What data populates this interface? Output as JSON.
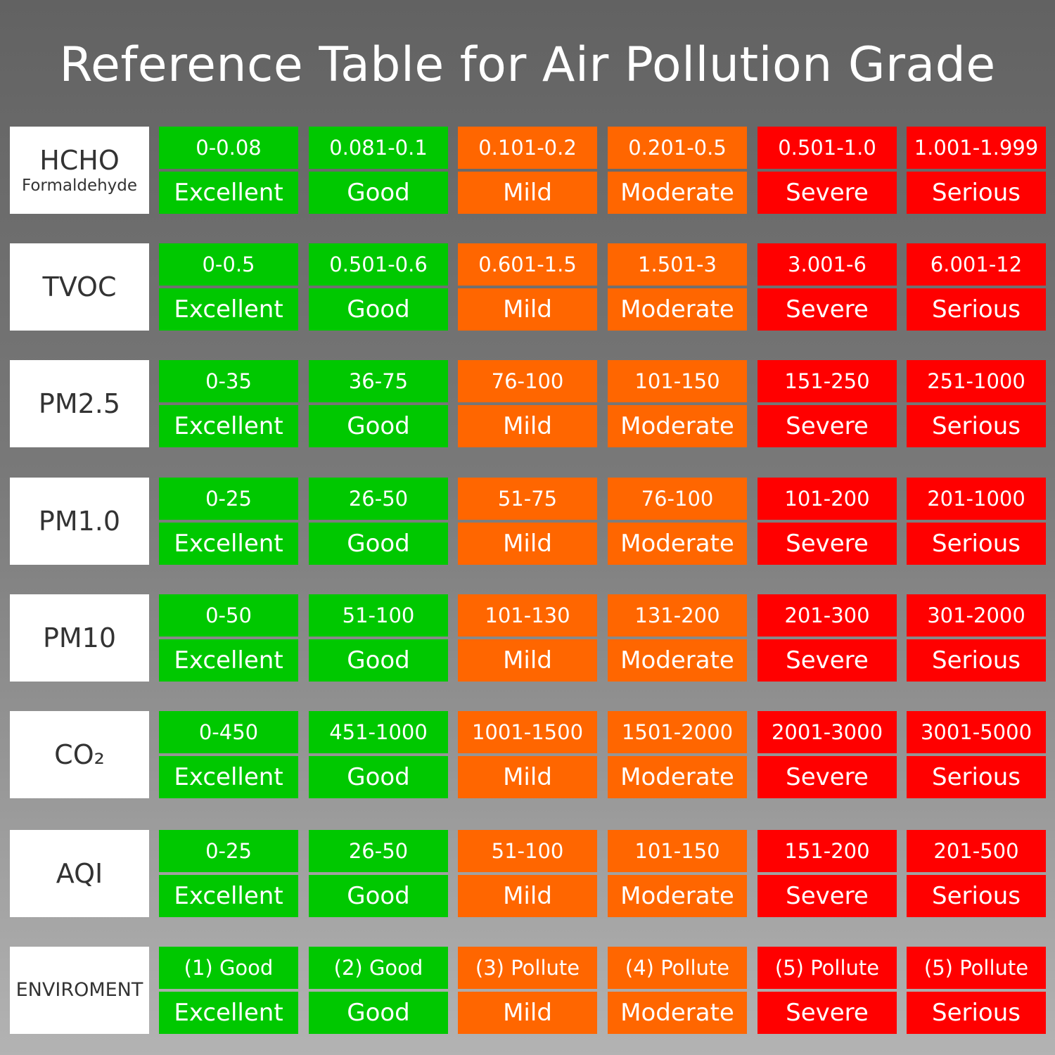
{
  "title": "Reference Table for Air Pollution Grade",
  "colors": {
    "green": "#00c800",
    "orange": "#ff6600",
    "red": "#ff0000"
  },
  "grades": [
    "Excellent",
    "Good",
    "Mild",
    "Moderate",
    "Severe",
    "Serious"
  ],
  "rows": [
    {
      "label": "HCHO",
      "sublabel": "Formaldehyde",
      "ranges": [
        "0-0.08",
        "0.081-0.1",
        "0.101-0.2",
        "0.201-0.5",
        "0.501-1.0",
        "1.001-1.999"
      ]
    },
    {
      "label": "TVOC",
      "ranges": [
        "0-0.5",
        "0.501-0.6",
        "0.601-1.5",
        "1.501-3",
        "3.001-6",
        "6.001-12"
      ]
    },
    {
      "label": "PM2.5",
      "ranges": [
        "0-35",
        "36-75",
        "76-100",
        "101-150",
        "151-250",
        "251-1000"
      ]
    },
    {
      "label": "PM1.0",
      "ranges": [
        "0-25",
        "26-50",
        "51-75",
        "76-100",
        "101-200",
        "201-1000"
      ]
    },
    {
      "label": "PM10",
      "ranges": [
        "0-50",
        "51-100",
        "101-130",
        "131-200",
        "201-300",
        "301-2000"
      ]
    },
    {
      "label": "CO₂",
      "ranges": [
        "0-450",
        "451-1000",
        "1001-1500",
        "1501-2000",
        "2001-3000",
        "3001-5000"
      ]
    },
    {
      "label": "AQI",
      "ranges": [
        "0-25",
        "26-50",
        "51-100",
        "101-150",
        "151-200",
        "201-500"
      ]
    },
    {
      "label": "ENVIROMENT",
      "ranges": [
        "(1) Good",
        "(2) Good",
        "(3) Pollute",
        "(4) Pollute",
        "(5) Pollute",
        "(5) Pollute"
      ]
    }
  ]
}
